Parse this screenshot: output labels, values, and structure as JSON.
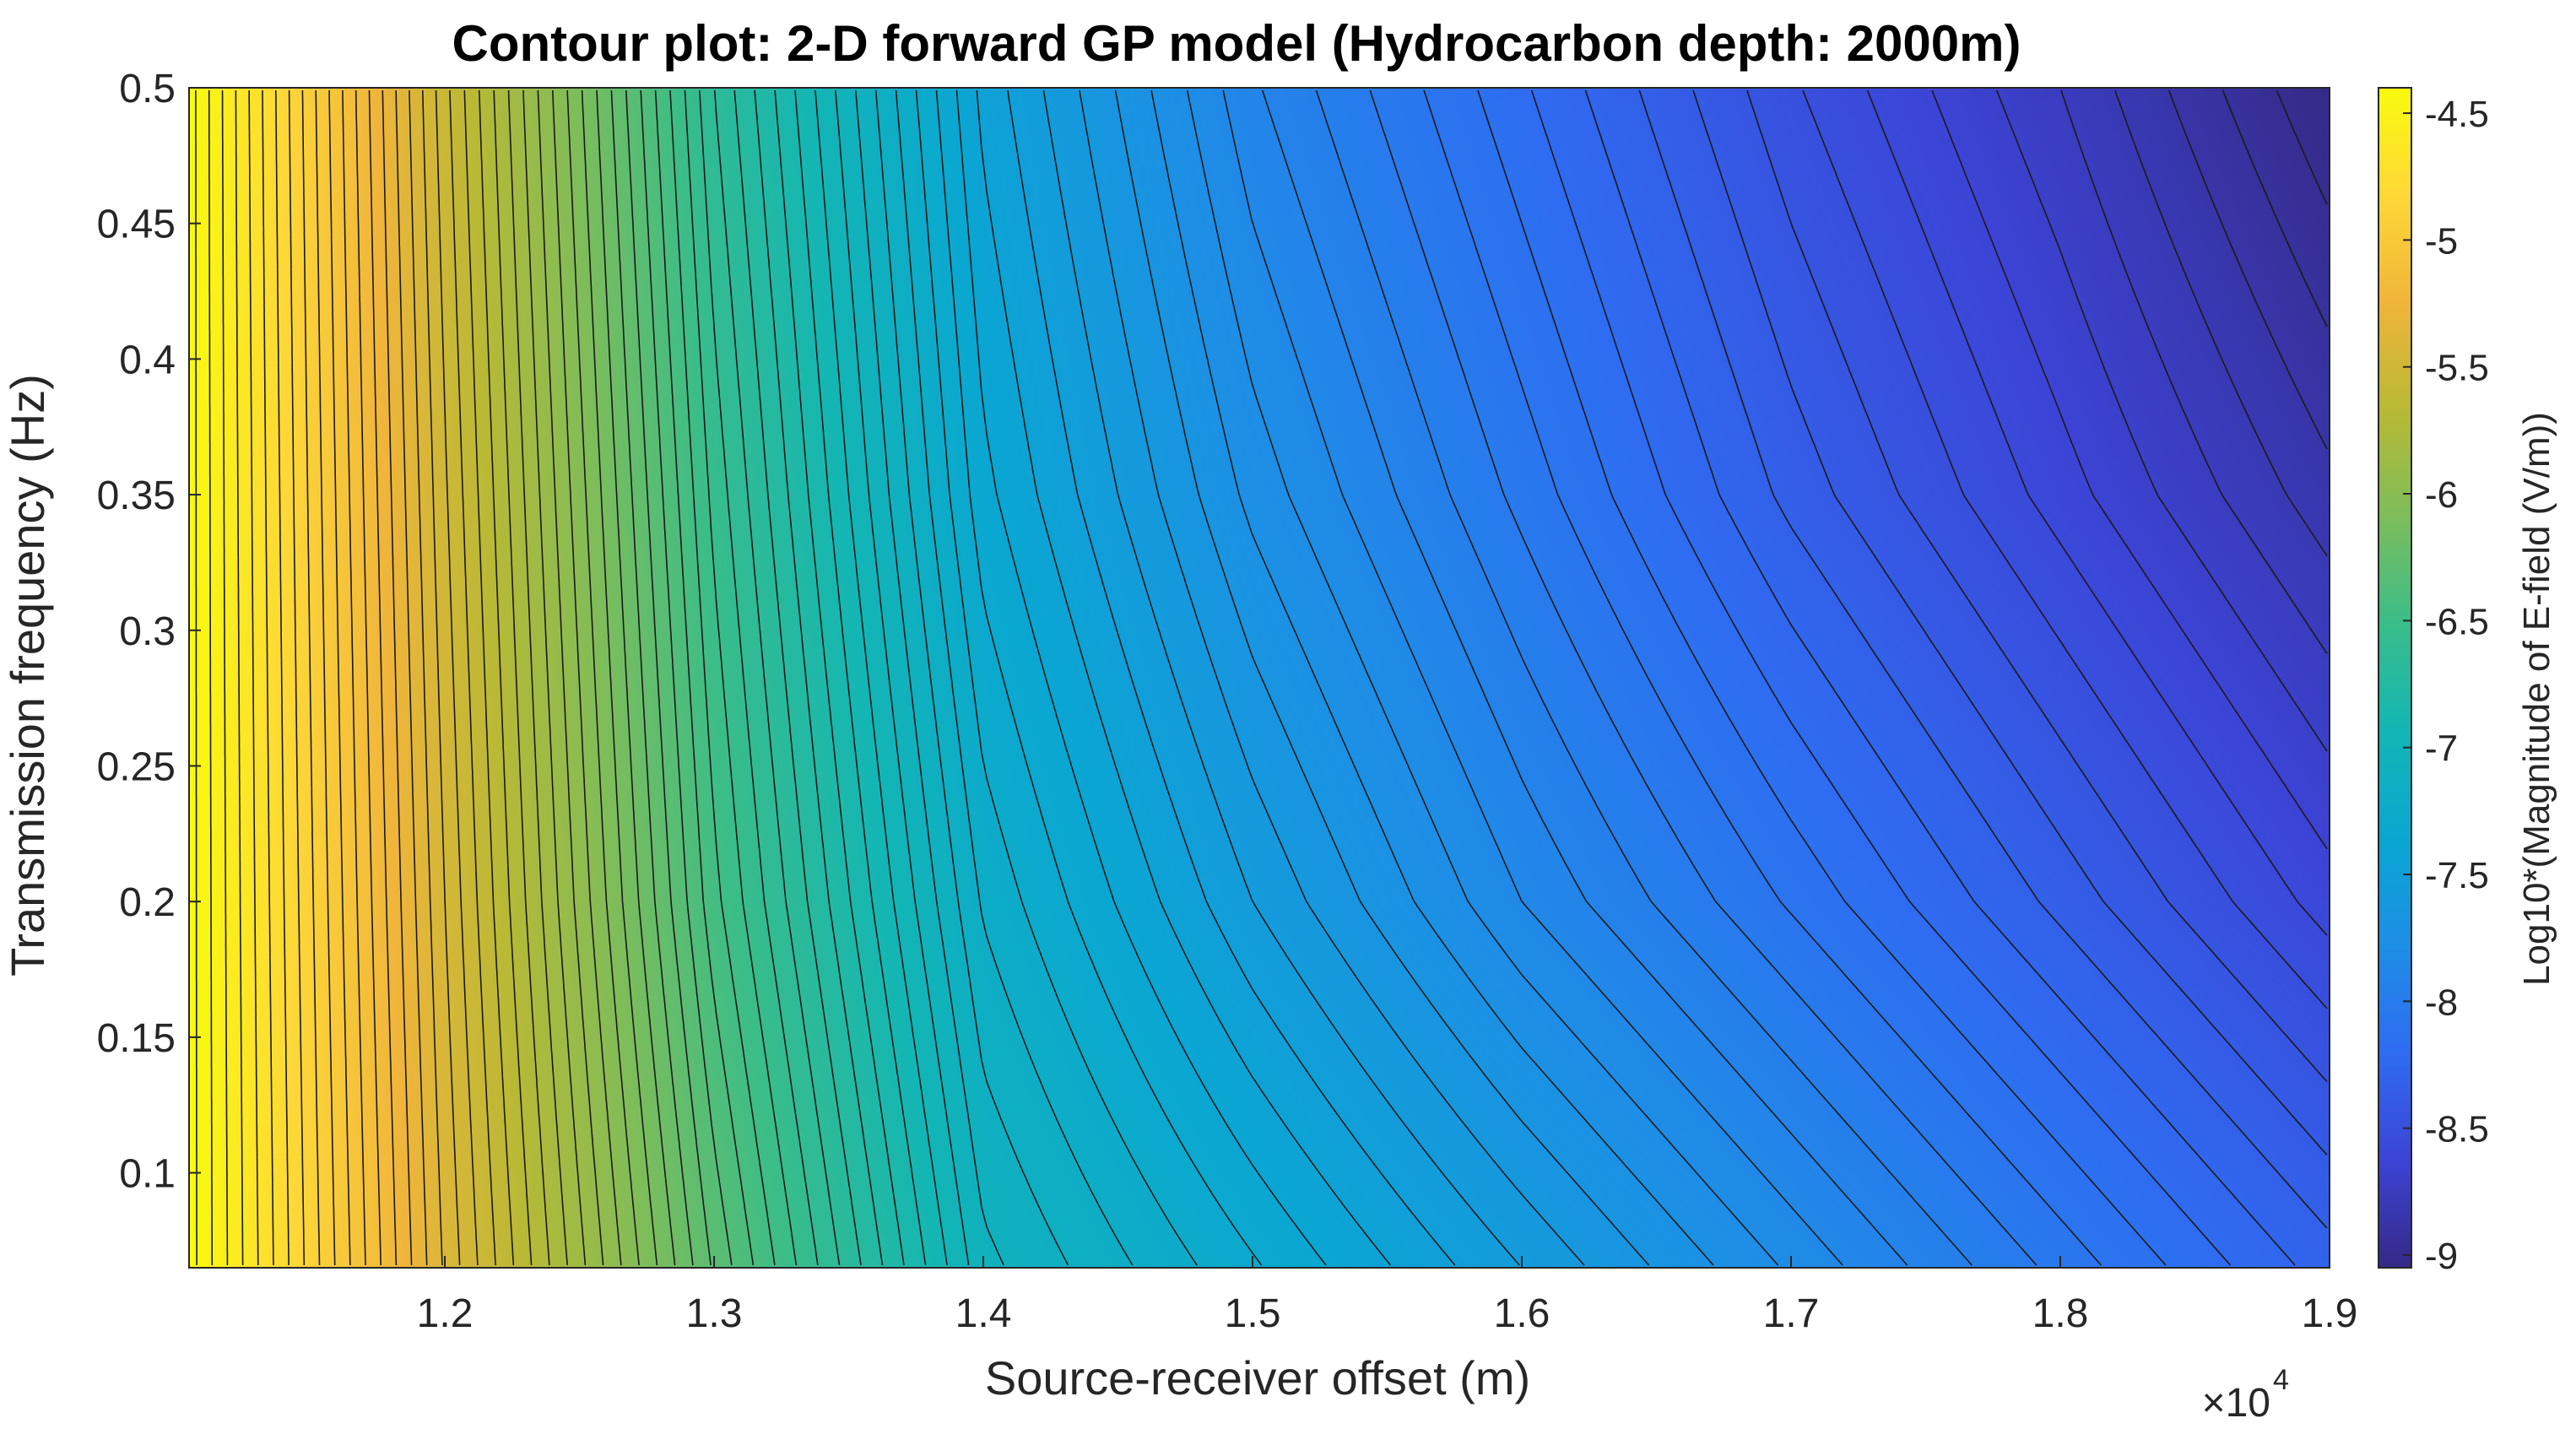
{
  "chart_data": {
    "type": "contour",
    "title": "Contour plot: 2-D forward GP model (Hydrocarbon depth: 2000m)",
    "xlabel": "Source-receiver offset (m)",
    "ylabel": "Transmission frequency (Hz)",
    "x_multiplier_label": "×10",
    "x_multiplier_exponent": "4",
    "xlim": [
      1.105,
      1.9
    ],
    "ylim": [
      0.065,
      0.5
    ],
    "x_ticks": [
      1.2,
      1.3,
      1.4,
      1.5,
      1.6,
      1.7,
      1.8,
      1.9
    ],
    "x_tick_labels": [
      "1.2",
      "1.3",
      "1.4",
      "1.5",
      "1.6",
      "1.7",
      "1.8",
      "1.9"
    ],
    "y_ticks": [
      0.1,
      0.15,
      0.2,
      0.25,
      0.3,
      0.35,
      0.4,
      0.45,
      0.5
    ],
    "y_tick_labels": [
      "0.1",
      "0.15",
      "0.2",
      "0.25",
      "0.3",
      "0.35",
      "0.4",
      "0.45",
      "0.5"
    ],
    "colorbar": {
      "label": "Log10*(Magnitude of E-field (V/m))",
      "clim": [
        -9.05,
        -4.4
      ],
      "ticks": [
        -4.5,
        -5,
        -5.5,
        -6,
        -6.5,
        -7,
        -7.5,
        -8,
        -8.5,
        -9
      ],
      "tick_labels": [
        "-4.5",
        "-5",
        "-5.5",
        "-6",
        "-6.5",
        "-7",
        "-7.5",
        "-8",
        "-8.5",
        "-9"
      ],
      "colormap": "parula",
      "colormap_stops": [
        "#352a87",
        "#3c44d6",
        "#2f6cf2",
        "#1e8ee6",
        "#0aa7d2",
        "#13b6b5",
        "#3abd8a",
        "#7dbd5b",
        "#b9b935",
        "#f0b53a",
        "#fed838",
        "#f9fb0e"
      ]
    },
    "field_samples": {
      "description_x": [
        1.105,
        1.2,
        1.3,
        1.4,
        1.5,
        1.6,
        1.7,
        1.8,
        1.9
      ],
      "rows": [
        {
          "y": 0.065,
          "values": [
            -4.4,
            -5.4,
            -6.3,
            -7.05,
            -7.3,
            -7.55,
            -7.8,
            -8.05,
            -8.3
          ]
        },
        {
          "y": 0.2,
          "values": [
            -4.4,
            -5.45,
            -6.45,
            -7.2,
            -7.55,
            -7.85,
            -8.1,
            -8.35,
            -8.6
          ]
        },
        {
          "y": 0.35,
          "values": [
            -4.4,
            -5.5,
            -6.55,
            -7.35,
            -7.75,
            -8.05,
            -8.35,
            -8.6,
            -8.85
          ]
        },
        {
          "y": 0.5,
          "values": [
            -4.4,
            -5.55,
            -6.65,
            -7.45,
            -7.9,
            -8.2,
            -8.5,
            -8.75,
            -9.05
          ]
        }
      ]
    },
    "contour_interval": 0.06
  }
}
